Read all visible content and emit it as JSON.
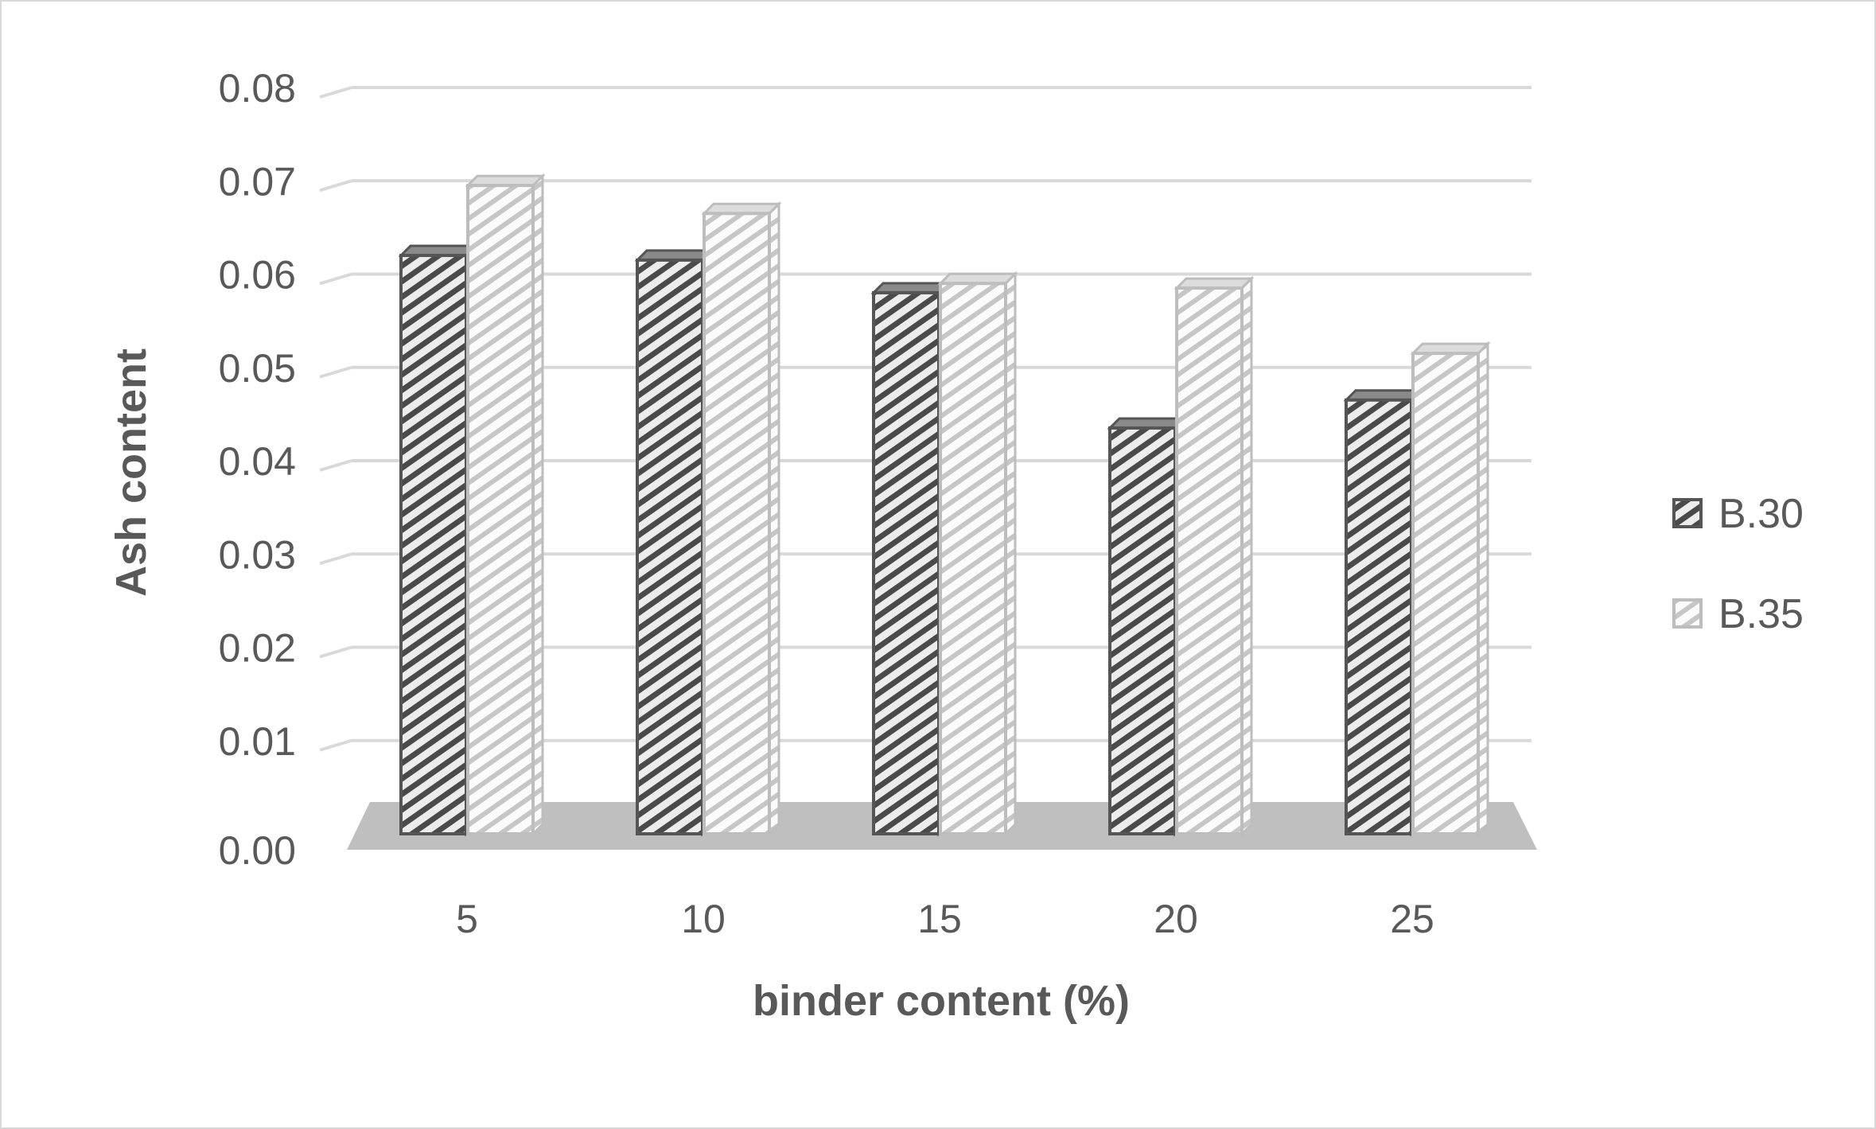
{
  "chart_data": {
    "type": "bar",
    "style": "3d-clustered-column",
    "title": "",
    "xlabel": "binder content (%)",
    "ylabel": "Ash content",
    "categories": [
      "5",
      "10",
      "15",
      "20",
      "25"
    ],
    "series": [
      {
        "name": "B.30",
        "values": [
          0.062,
          0.0615,
          0.058,
          0.0435,
          0.0465
        ],
        "color": "#595959"
      },
      {
        "name": "B.35",
        "values": [
          0.0695,
          0.0665,
          0.059,
          0.0585,
          0.0515
        ],
        "color": "#b3b3b3"
      }
    ],
    "ylim": [
      0,
      0.08
    ],
    "yticks": [
      "0.00",
      "0.01",
      "0.02",
      "0.03",
      "0.04",
      "0.05",
      "0.06",
      "0.07",
      "0.08"
    ],
    "grid": true,
    "legend": "right"
  }
}
